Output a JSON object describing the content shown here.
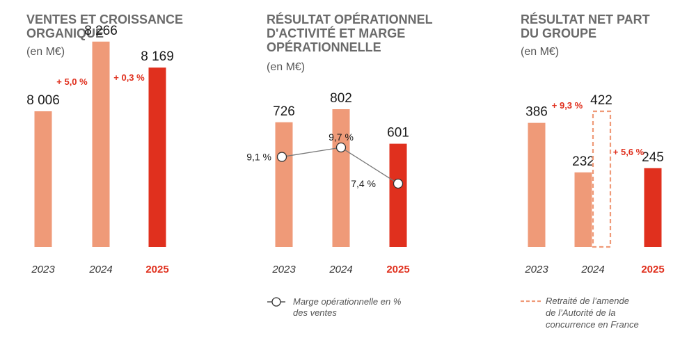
{
  "colors": {
    "bar_past": "#ef9a78",
    "bar_current": "#e0301e",
    "accent": "#e0301e",
    "title": "#6a6a6a",
    "dashed_outline": "#ef9a78"
  },
  "chart_data": [
    {
      "type": "bar",
      "title": "VENTES ET CROISSANCE ORGANIQUE",
      "subtitle": "(en M€)",
      "categories": [
        "2023",
        "2024",
        "2025"
      ],
      "values": [
        8006,
        8266,
        8169
      ],
      "value_labels": [
        "8 006",
        "8 266",
        "8 169"
      ],
      "growth_labels": [
        "+ 5,0 %",
        "+ 0,3 %"
      ],
      "highlight_category": "2025"
    },
    {
      "type": "bar",
      "title": "RÉSULTAT OPÉRATIONNEL D'ACTIVITÉ ET MARGE OPÉRATIONNELLE",
      "subtitle": "(en M€)",
      "categories": [
        "2023",
        "2024",
        "2025"
      ],
      "values": [
        726,
        802,
        601
      ],
      "value_labels": [
        "726",
        "802",
        "601"
      ],
      "line_series": {
        "name": "Marge opérationnelle en % des ventes",
        "values": [
          9.1,
          9.7,
          7.4
        ],
        "labels": [
          "9,1 %",
          "9,7 %",
          "7,4 %"
        ]
      },
      "legend": {
        "label": "Marge opérationnelle en % des ventes",
        "position": "bottom"
      },
      "highlight_category": "2025"
    },
    {
      "type": "bar",
      "title": "RÉSULTAT NET PART DU GROUPE",
      "subtitle": "(en M€)",
      "categories": [
        "2023",
        "2024",
        "2025"
      ],
      "values": [
        386,
        232,
        245
      ],
      "value_labels": [
        "386",
        "232",
        "245"
      ],
      "restated_2024": {
        "value": 422,
        "label": "422"
      },
      "growth_labels": [
        "+ 9,3 %",
        "+ 5,6 %"
      ],
      "legend": {
        "label": "Retraité de l'amende de l'Autorité de la concurrence en France",
        "position": "bottom"
      },
      "highlight_category": "2025"
    }
  ]
}
